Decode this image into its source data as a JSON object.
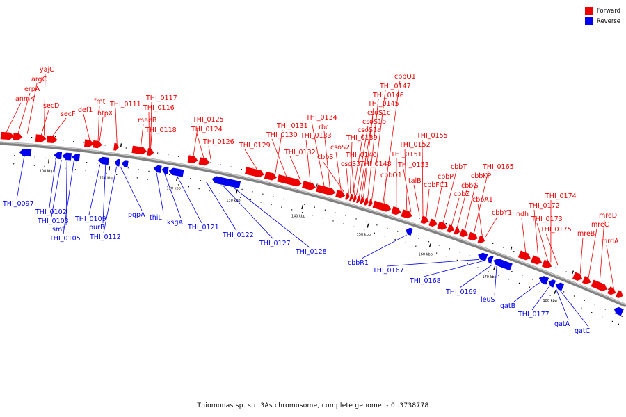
{
  "title": "Thiomonas sp. str. 3As chromosome, complete genome. - 0..3738778",
  "legend": [
    {
      "label": "Forward",
      "color": "#ee0000"
    },
    {
      "label": "Reverse",
      "color": "#0000ee"
    }
  ],
  "colors": {
    "forward": "#ee0000",
    "reverse": "#0000ee",
    "backbone": "#808080"
  },
  "ticks": [
    {
      "label": "100 kbp",
      "kbp": 100
    },
    {
      "label": "110 kbp",
      "kbp": 110
    },
    {
      "label": "120 kbp",
      "kbp": 120
    },
    {
      "label": "130 kbp",
      "kbp": 130
    },
    {
      "label": "140 kbp",
      "kbp": 140
    },
    {
      "label": "150 kbp",
      "kbp": 150
    },
    {
      "label": "160 kbp",
      "kbp": 160
    },
    {
      "label": "170 kbp",
      "kbp": 170
    },
    {
      "label": "180 kbp",
      "kbp": 180
    }
  ],
  "forward_genes": [
    "anmK",
    "erpA",
    "argC",
    "yajC",
    "secD",
    "secF",
    "def1",
    "fmt",
    "htpX",
    "THI_0111",
    "THI_0117",
    "THI_0116",
    "maeB",
    "THI_0118",
    "THI_0125",
    "THI_0124",
    "THI_0126",
    "THI_0129",
    "THI_0131",
    "THI_0130",
    "THI_0132",
    "THI_0134",
    "rbcL",
    "THI_0133",
    "cbbS",
    "csoS2",
    "csoS3",
    "THI_0139",
    "csoS1a",
    "csoS1b",
    "csoS1c",
    "THI_0145",
    "THI_0146",
    "THI_0147",
    "cbbQ1",
    "THI_0140",
    "THI_0148",
    "cbbO1",
    "THI_0151",
    "THI_0152",
    "THI_0153",
    "THI_0155",
    "talB",
    "cbbFC1",
    "cbbP",
    "cbbT",
    "cbbZ",
    "cbbG",
    "cbbKP",
    "THI_0165",
    "cbbA1",
    "cbbY1",
    "ndh",
    "THI_0172",
    "THI_0173",
    "THI_0174",
    "THI_0175",
    "mreB",
    "mreC",
    "mreD",
    "mrdA"
  ],
  "reverse_genes": [
    "THI_0097",
    "THI_0102",
    "THI_0103",
    "smf",
    "THI_0105",
    "THI_0109",
    "purB",
    "THI_0112",
    "pgpA",
    "thiL",
    "ksgA",
    "THI_0121",
    "THI_0122",
    "THI_0127",
    "THI_0128",
    "cbbR1",
    "THI_0167",
    "THI_0168",
    "THI_0169",
    "leuS",
    "gatB",
    "THI_0177",
    "gatA",
    "gatC"
  ]
}
